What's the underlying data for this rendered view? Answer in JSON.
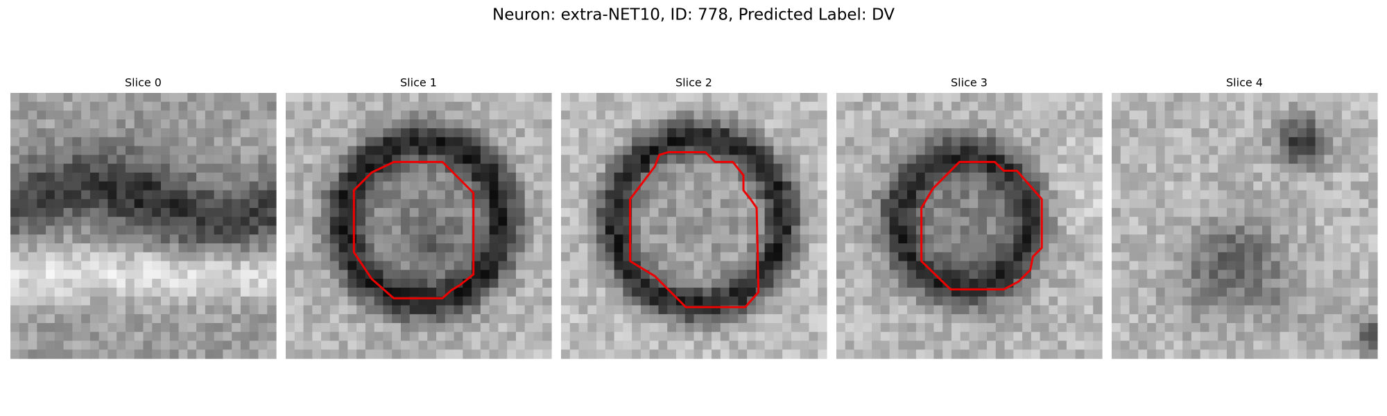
{
  "figure": {
    "title": "Neuron: extra-NET10, ID: 778, Predicted Label: DV",
    "panels": [
      {
        "title": "Slice 0"
      },
      {
        "title": "Slice 1"
      },
      {
        "title": "Slice 2"
      },
      {
        "title": "Slice 3"
      },
      {
        "title": "Slice 4"
      }
    ]
  }
}
